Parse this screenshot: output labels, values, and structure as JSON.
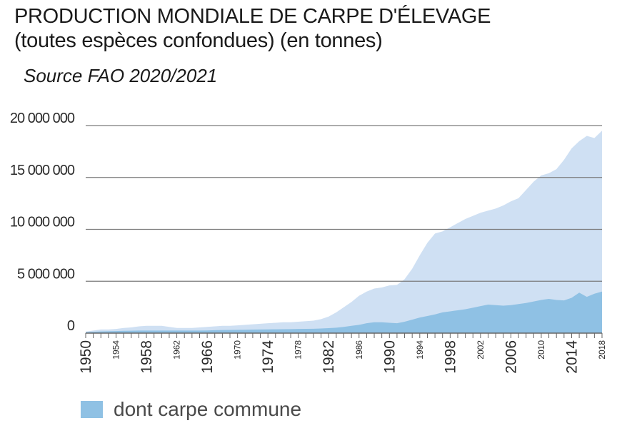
{
  "chart_data": {
    "type": "area",
    "title": [
      "PRODUCTION MONDIALE DE CARPE D'ÉLEVAGE",
      "(toutes espèces confondues) (en tonnes)"
    ],
    "subtitle": "Source FAO 2020/2021",
    "ylim": [
      0,
      20000000
    ],
    "yticks": [
      0,
      5000000,
      10000000,
      15000000,
      20000000
    ],
    "ytick_labels": [
      "0",
      "5 000 000",
      "10 000 000",
      "15 000 000",
      "20 000 000"
    ],
    "xlim": [
      1950,
      2018
    ],
    "xticks_major": [
      1950,
      1958,
      1966,
      1974,
      1982,
      1990,
      1998,
      2006,
      2014
    ],
    "xticks_minor": [
      1954,
      1962,
      1970,
      1978,
      1986,
      1994,
      2002,
      2010,
      2018
    ],
    "x": [
      1950,
      1951,
      1952,
      1953,
      1954,
      1955,
      1956,
      1957,
      1958,
      1959,
      1960,
      1961,
      1962,
      1963,
      1964,
      1965,
      1966,
      1967,
      1968,
      1969,
      1970,
      1971,
      1972,
      1973,
      1974,
      1975,
      1976,
      1977,
      1978,
      1979,
      1980,
      1981,
      1982,
      1983,
      1984,
      1985,
      1986,
      1987,
      1988,
      1989,
      1990,
      1991,
      1992,
      1993,
      1994,
      1995,
      1996,
      1997,
      1998,
      1999,
      2000,
      2001,
      2002,
      2003,
      2004,
      2005,
      2006,
      2007,
      2008,
      2009,
      2010,
      2011,
      2012,
      2013,
      2014,
      2015,
      2016,
      2017,
      2018
    ],
    "series": [
      {
        "values": [
          150000,
          250000,
          350000,
          350000,
          400000,
          500000,
          550000,
          650000,
          700000,
          700000,
          700000,
          600000,
          500000,
          500000,
          500000,
          550000,
          600000,
          650000,
          700000,
          700000,
          750000,
          800000,
          850000,
          900000,
          950000,
          1000000,
          1050000,
          1050000,
          1100000,
          1150000,
          1200000,
          1350000,
          1600000,
          2000000,
          2500000,
          3000000,
          3600000,
          4000000,
          4300000,
          4400000,
          4600000,
          4650000,
          5200000,
          6200000,
          7500000,
          8700000,
          9600000,
          9800000,
          10200000,
          10600000,
          11000000,
          11300000,
          11600000,
          11800000,
          12000000,
          12300000,
          12700000,
          13000000,
          13800000,
          14600000,
          15200000,
          15400000,
          15800000,
          16700000,
          17800000,
          18500000,
          19000000,
          18800000,
          19500000
        ],
        "color": "#cfe0f3"
      },
      {
        "name": "dont carpe commune",
        "values": [
          100000,
          130000,
          160000,
          180000,
          200000,
          220000,
          230000,
          250000,
          250000,
          250000,
          250000,
          250000,
          250000,
          250000,
          250000,
          250000,
          260000,
          280000,
          300000,
          310000,
          320000,
          330000,
          340000,
          350000,
          360000,
          370000,
          380000,
          390000,
          400000,
          410000,
          420000,
          450000,
          480000,
          520000,
          600000,
          700000,
          800000,
          950000,
          1050000,
          1050000,
          1000000,
          950000,
          1100000,
          1300000,
          1500000,
          1650000,
          1800000,
          2000000,
          2100000,
          2200000,
          2300000,
          2450000,
          2600000,
          2750000,
          2700000,
          2650000,
          2700000,
          2800000,
          2900000,
          3050000,
          3200000,
          3300000,
          3200000,
          3150000,
          3400000,
          3900000,
          3500000,
          3800000,
          4000000
        ],
        "color": "#8fc1e4"
      }
    ],
    "grid": true,
    "legend_position": "bottom-left"
  }
}
